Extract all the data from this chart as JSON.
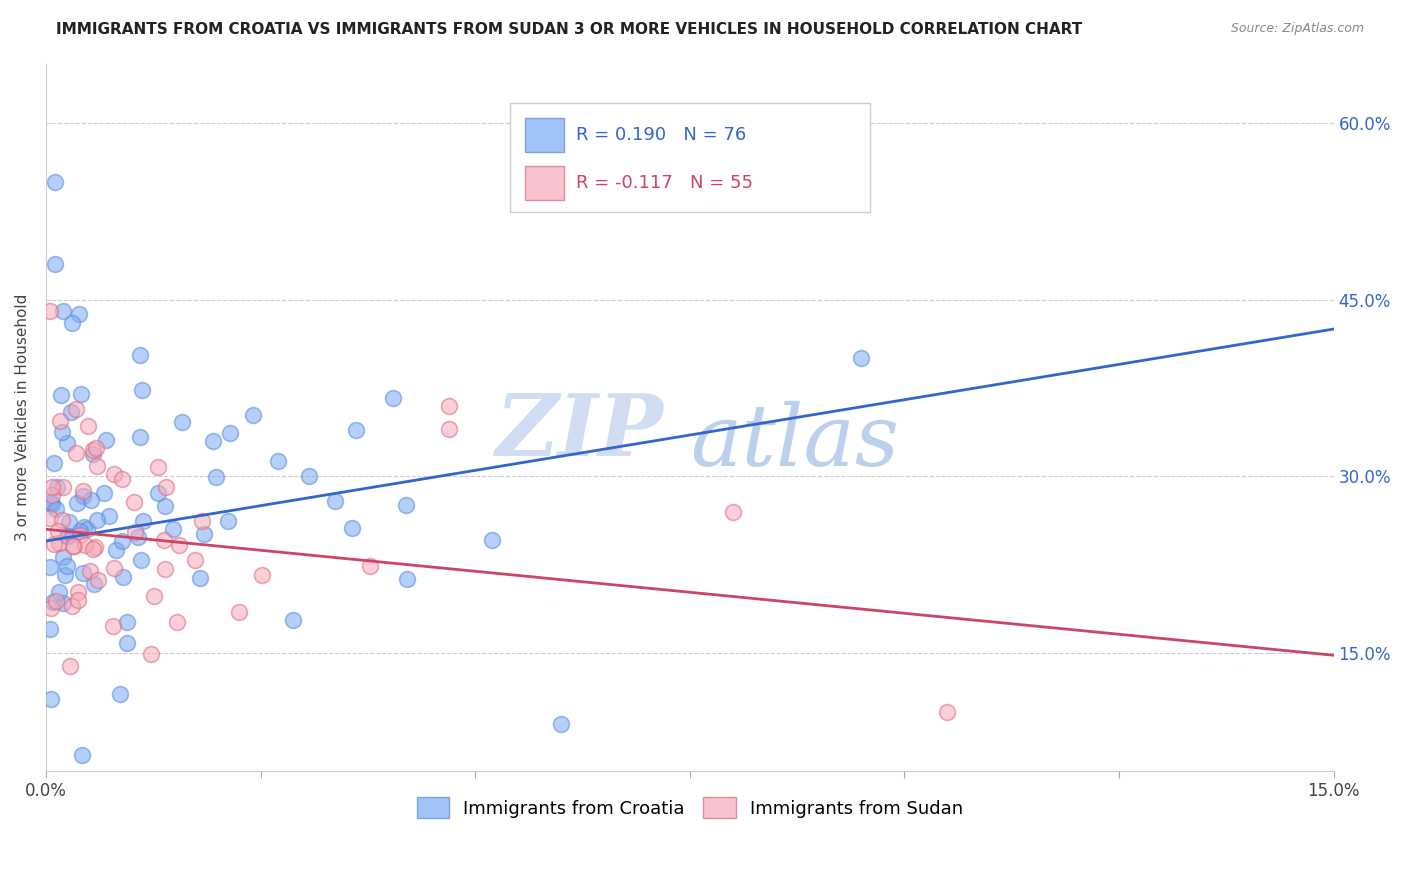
{
  "title": "IMMIGRANTS FROM CROATIA VS IMMIGRANTS FROM SUDAN 3 OR MORE VEHICLES IN HOUSEHOLD CORRELATION CHART",
  "source": "Source: ZipAtlas.com",
  "ylabel": "3 or more Vehicles in Household",
  "yaxis_ticks": [
    "15.0%",
    "30.0%",
    "45.0%",
    "60.0%"
  ],
  "yaxis_values": [
    0.15,
    0.3,
    0.45,
    0.6
  ],
  "xmin": 0.0,
  "xmax": 0.15,
  "ymin": 0.05,
  "ymax": 0.65,
  "croatia_color": "#7aabf5",
  "croatia_edge_color": "#5588dd",
  "sudan_color": "#f5aabb",
  "sudan_edge_color": "#dd6677",
  "croatia_line_color": "#3366cc",
  "sudan_line_color": "#cc4466",
  "croatia_R": 0.19,
  "croatia_N": 76,
  "sudan_R": -0.117,
  "sudan_N": 55,
  "legend_label_croatia": "Immigrants from Croatia",
  "legend_label_sudan": "Immigrants from Sudan",
  "watermark_zip": "ZIP",
  "watermark_atlas": "atlas",
  "title_fontsize": 11,
  "source_fontsize": 9,
  "axis_label_fontsize": 11,
  "tick_fontsize": 12,
  "legend_fontsize": 13,
  "watermark_color": "#c8d8f0",
  "watermark_atlas_color": "#b0c8e8"
}
